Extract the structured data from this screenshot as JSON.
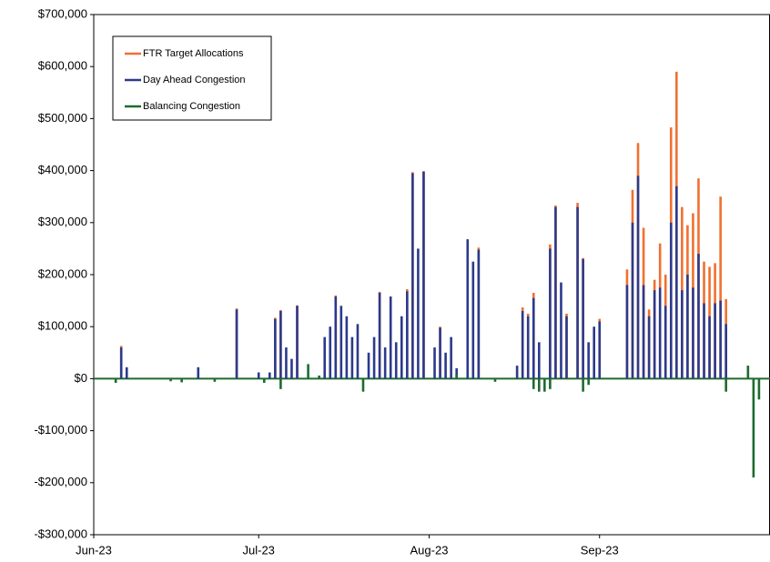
{
  "chart_data": {
    "type": "bar",
    "xlim": [
      0,
      123
    ],
    "xticks": [
      {
        "value": 0,
        "label": "Jun-23"
      },
      {
        "value": 30,
        "label": "Jul-23"
      },
      {
        "value": 61,
        "label": "Aug-23"
      },
      {
        "value": 92,
        "label": "Sep-23"
      }
    ],
    "ylim": [
      -300000,
      700000
    ],
    "yticks": [
      {
        "value": -300000,
        "label": "-$300,000"
      },
      {
        "value": -200000,
        "label": "-$200,000"
      },
      {
        "value": -100000,
        "label": "-$100,000"
      },
      {
        "value": 0,
        "label": "$0"
      },
      {
        "value": 100000,
        "label": "$100,000"
      },
      {
        "value": 200000,
        "label": "$200,000"
      },
      {
        "value": 300000,
        "label": "$300,000"
      },
      {
        "value": 400000,
        "label": "$400,000"
      },
      {
        "value": 500000,
        "label": "$500,000"
      },
      {
        "value": 600000,
        "label": "$600,000"
      },
      {
        "value": 700000,
        "label": "$700,000"
      }
    ],
    "legend": "upper left",
    "series": [
      {
        "name": "FTR Target Allocations",
        "color": "#f07030",
        "x": [
          5,
          26,
          33,
          34,
          37,
          44,
          52,
          57,
          58,
          60,
          63,
          70,
          78,
          79,
          80,
          83,
          84,
          86,
          88,
          89,
          92,
          97,
          98,
          99,
          100,
          101,
          102,
          103,
          104,
          105,
          106,
          107,
          108,
          109,
          110,
          111,
          112,
          113,
          114,
          115
        ],
        "values": [
          63000,
          135000,
          117000,
          132000,
          141000,
          160000,
          167000,
          172000,
          397000,
          399000,
          100000,
          252000,
          137000,
          125000,
          165000,
          258000,
          333000,
          125000,
          338000,
          232000,
          115000,
          210000,
          363000,
          453000,
          290000,
          133000,
          190000,
          260000,
          200000,
          483000,
          590000,
          330000,
          295000,
          318000,
          385000,
          225000,
          215000,
          222000,
          350000,
          153000
        ]
      },
      {
        "name": "Day Ahead Congestion",
        "color": "#2b3a8c",
        "x": [
          5,
          6,
          19,
          26,
          30,
          32,
          33,
          34,
          35,
          36,
          37,
          42,
          43,
          44,
          45,
          46,
          47,
          48,
          50,
          51,
          52,
          53,
          54,
          55,
          56,
          57,
          58,
          59,
          60,
          62,
          63,
          64,
          65,
          66,
          68,
          69,
          70,
          77,
          78,
          79,
          80,
          81,
          83,
          84,
          85,
          86,
          88,
          89,
          90,
          91,
          92,
          97,
          98,
          99,
          100,
          101,
          102,
          103,
          104,
          105,
          106,
          107,
          108,
          109,
          110,
          111,
          112,
          113,
          114,
          115
        ],
        "values": [
          60000,
          22000,
          22000,
          133000,
          12000,
          12000,
          115000,
          130000,
          60000,
          38000,
          140000,
          80000,
          100000,
          158000,
          140000,
          120000,
          80000,
          105000,
          50000,
          80000,
          165000,
          60000,
          158000,
          70000,
          120000,
          168000,
          395000,
          250000,
          398000,
          60000,
          98000,
          50000,
          80000,
          20000,
          268000,
          225000,
          248000,
          25000,
          130000,
          120000,
          155000,
          70000,
          250000,
          330000,
          185000,
          120000,
          330000,
          230000,
          70000,
          100000,
          110000,
          180000,
          300000,
          390000,
          180000,
          120000,
          170000,
          175000,
          140000,
          300000,
          370000,
          170000,
          200000,
          175000,
          240000,
          145000,
          120000,
          145000,
          150000,
          105000
        ]
      },
      {
        "name": "Balancing Congestion",
        "color": "#1e6b2e",
        "x": [
          4,
          14,
          16,
          22,
          31,
          34,
          39,
          41,
          49,
          66,
          73,
          80,
          81,
          82,
          83,
          89,
          90,
          115,
          119,
          120,
          121
        ],
        "values": [
          -8000,
          -5000,
          -7000,
          -6000,
          -8000,
          -20000,
          28000,
          6000,
          -25000,
          8000,
          -6000,
          -20000,
          -25000,
          -25000,
          -20000,
          -25000,
          -12000,
          -25000,
          25000,
          -190000,
          -40000
        ]
      }
    ]
  }
}
